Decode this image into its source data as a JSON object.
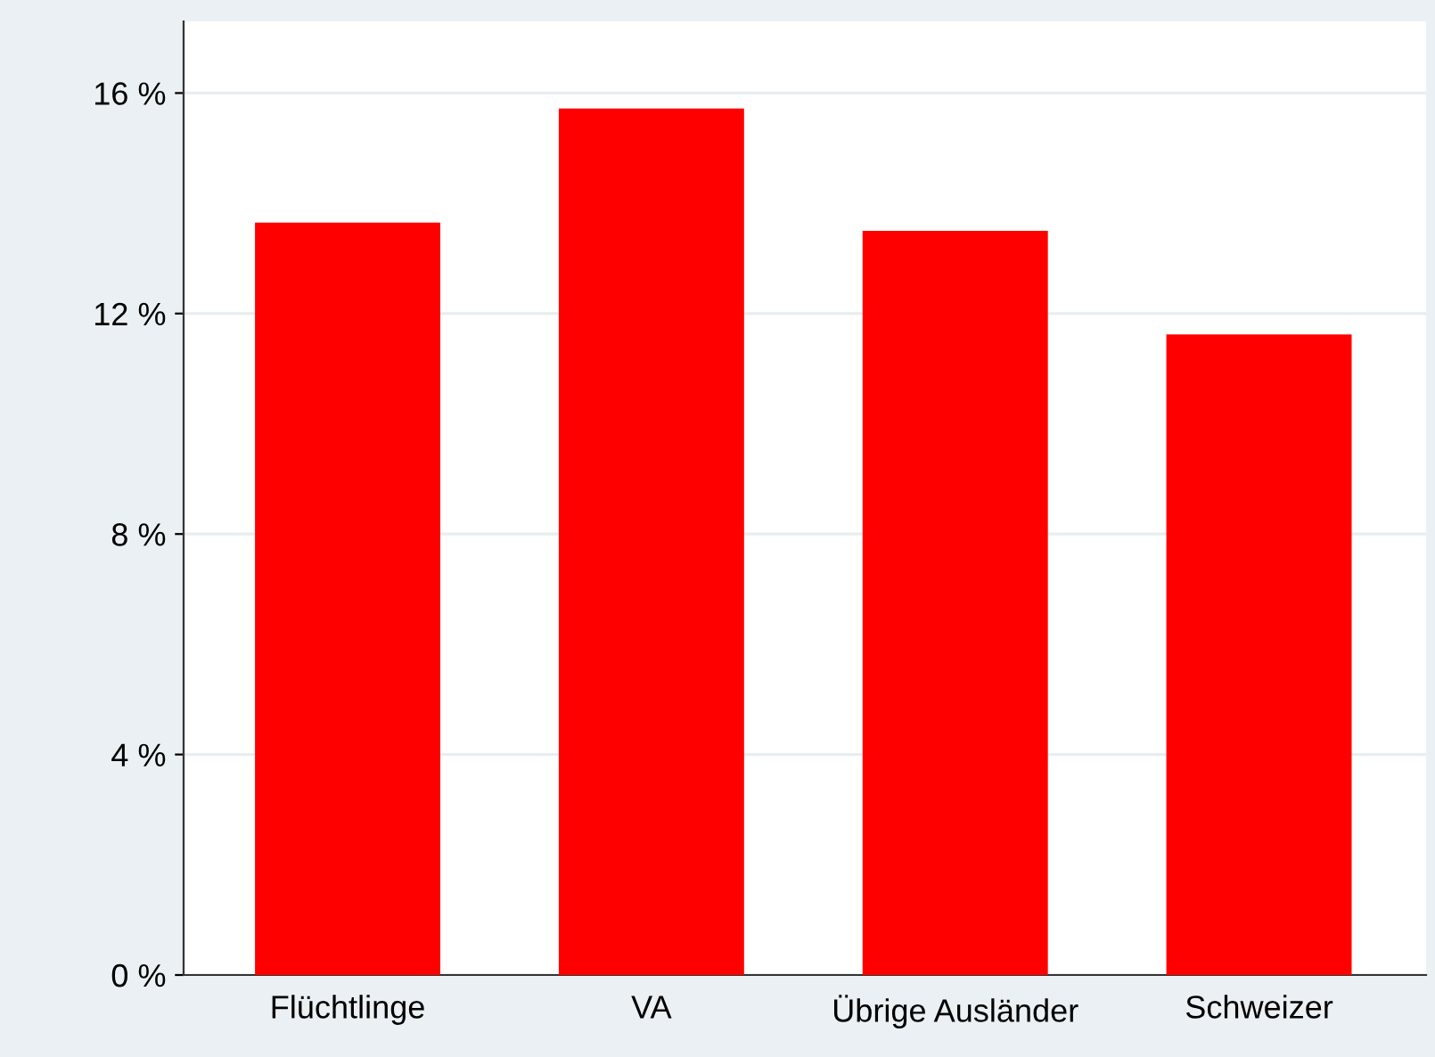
{
  "chart_data": {
    "type": "bar",
    "categories": [
      "Flüchtlinge",
      "VA",
      "Übrige Ausländer",
      "Schweizer"
    ],
    "values": [
      13.65,
      15.72,
      13.5,
      11.62
    ],
    "color": "#ff0000",
    "ylim": [
      0,
      17.3
    ],
    "yticks": [
      {
        "value": 0,
        "label": "0 %"
      },
      {
        "value": 4,
        "label": "4 %"
      },
      {
        "value": 8,
        "label": "8 %"
      },
      {
        "value": 12,
        "label": "12 %"
      },
      {
        "value": 16,
        "label": "16 %"
      }
    ],
    "grid": "y",
    "legend": false
  }
}
